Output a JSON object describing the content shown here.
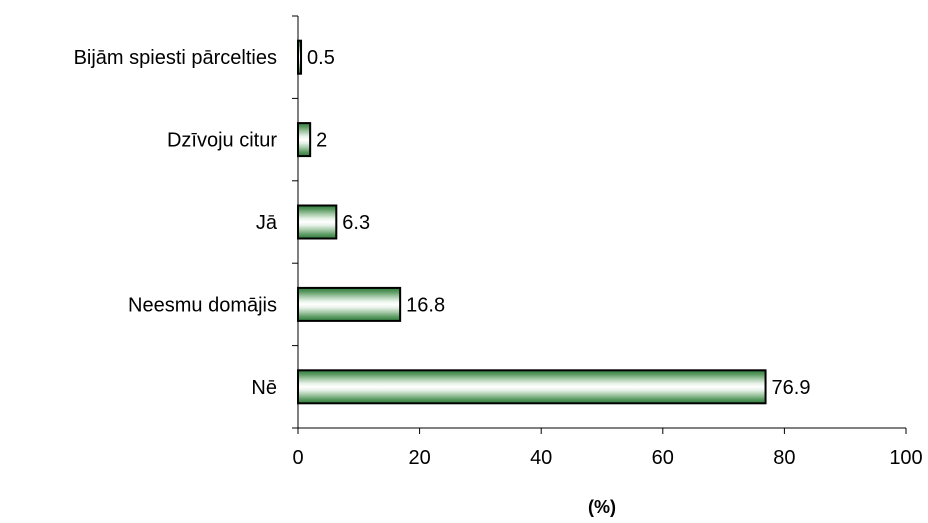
{
  "chart_data": {
    "type": "bar",
    "orientation": "horizontal",
    "categories": [
      "Bijām spiesti pārcelties",
      "Dzīvoju citur",
      "Jā",
      "Neesmu domājis",
      "Nē"
    ],
    "values": [
      0.5,
      2,
      6.3,
      16.8,
      76.9
    ],
    "data_labels": [
      "0.5",
      "2",
      "6.3",
      "16.8",
      "76.9"
    ],
    "title": "",
    "xlabel": "(%)",
    "ylabel": "",
    "xlim": [
      0,
      100
    ],
    "xticks": [
      0,
      20,
      40,
      60,
      80,
      100
    ],
    "xtick_labels": [
      "0",
      "20",
      "40",
      "60",
      "80",
      "100"
    ],
    "grid": false,
    "legend": "none",
    "bar_fill": "horizontal green-white gradient stripes",
    "colors": {
      "bar_dark": "#2f7a3a",
      "bar_mid": "#9fc6a2",
      "bar_light": "#ffffff",
      "outline": "#000000"
    }
  }
}
